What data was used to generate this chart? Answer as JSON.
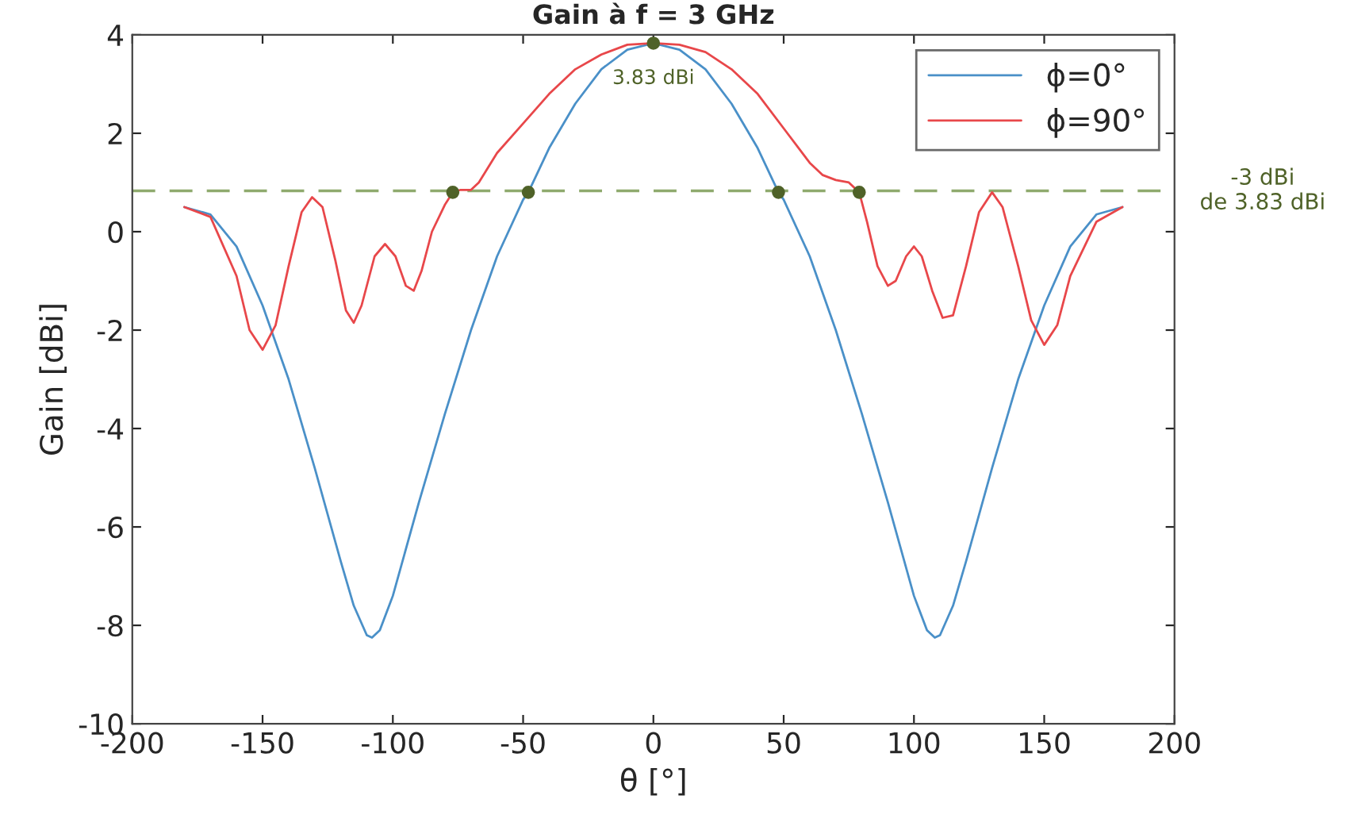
{
  "chart_data": {
    "type": "line",
    "title": "Gain à f = 3 GHz",
    "xlabel": "θ [°]",
    "ylabel": "Gain [dBi]",
    "xlim": [
      -200,
      200
    ],
    "xticks": [
      -200,
      -150,
      -100,
      -50,
      0,
      50,
      100,
      150,
      200
    ],
    "ylim": [
      -10,
      4
    ],
    "yticks": [
      -10,
      -8,
      -6,
      -4,
      -2,
      0,
      2,
      4
    ],
    "grid": false,
    "legend": "top right",
    "series": [
      {
        "name": "ϕ=0°",
        "color": "#4a90c8",
        "x": [
          -180,
          -170,
          -160,
          -150,
          -140,
          -130,
          -120,
          -115,
          -110,
          -108,
          -105,
          -100,
          -90,
          -80,
          -70,
          -60,
          -50,
          -48,
          -40,
          -30,
          -20,
          -10,
          0,
          10,
          20,
          30,
          40,
          48,
          50,
          60,
          70,
          80,
          90,
          100,
          105,
          108,
          110,
          115,
          120,
          130,
          140,
          150,
          160,
          170,
          180
        ],
        "values": [
          0.5,
          0.35,
          -0.3,
          -1.5,
          -3.0,
          -4.8,
          -6.7,
          -7.6,
          -8.2,
          -8.25,
          -8.1,
          -7.4,
          -5.5,
          -3.7,
          -2.0,
          -0.5,
          0.65,
          0.8,
          1.7,
          2.6,
          3.3,
          3.7,
          3.83,
          3.7,
          3.3,
          2.6,
          1.7,
          0.8,
          0.65,
          -0.5,
          -2.0,
          -3.7,
          -5.5,
          -7.4,
          -8.1,
          -8.25,
          -8.2,
          -7.6,
          -6.7,
          -4.8,
          -3.0,
          -1.5,
          -0.3,
          0.35,
          0.5
        ]
      },
      {
        "name": "ϕ=90°",
        "color": "#e8474a",
        "x": [
          -180,
          -170,
          -160,
          -155,
          -150,
          -145,
          -140,
          -135,
          -131,
          -127,
          -122,
          -118,
          -115,
          -112,
          -107,
          -103,
          -99,
          -95,
          -92,
          -89,
          -85,
          -80,
          -77,
          -74,
          -70,
          -67,
          -60,
          -50,
          -40,
          -30,
          -20,
          -10,
          0,
          10,
          20,
          30,
          40,
          50,
          60,
          65,
          70,
          75,
          79,
          82,
          86,
          90,
          93,
          97,
          100,
          103,
          107,
          111,
          115,
          120,
          125,
          130,
          134,
          140,
          145,
          150,
          155,
          160,
          170,
          180
        ],
        "values": [
          0.5,
          0.3,
          -0.9,
          -2.0,
          -2.4,
          -1.9,
          -0.7,
          0.4,
          0.7,
          0.5,
          -0.6,
          -1.6,
          -1.85,
          -1.5,
          -0.5,
          -0.25,
          -0.5,
          -1.1,
          -1.2,
          -0.8,
          0,
          0.55,
          0.8,
          0.85,
          0.85,
          1.0,
          1.6,
          2.2,
          2.8,
          3.3,
          3.6,
          3.8,
          3.83,
          3.8,
          3.65,
          3.3,
          2.8,
          2.1,
          1.4,
          1.15,
          1.05,
          1.0,
          0.8,
          0.2,
          -0.7,
          -1.1,
          -1.0,
          -0.5,
          -0.3,
          -0.5,
          -1.2,
          -1.75,
          -1.7,
          -0.7,
          0.4,
          0.8,
          0.5,
          -0.7,
          -1.8,
          -2.3,
          -1.9,
          -0.9,
          0.2,
          0.5
        ]
      },
      {
        "type": "scatter",
        "color": "#4f6228",
        "marker": "circle",
        "x": [
          -77,
          -48,
          0,
          48,
          79
        ],
        "values": [
          0.8,
          0.8,
          3.83,
          0.8,
          0.8
        ]
      }
    ],
    "ref_lines": [
      {
        "axis": "y",
        "value": 0.83,
        "label": "-3 dBi\nde 3.83 dBi",
        "color": "#8faa6e",
        "line_style": "dashed"
      }
    ],
    "annotations": [
      {
        "text": "3.83 dBi",
        "x": 0,
        "y": 3.83
      }
    ]
  }
}
